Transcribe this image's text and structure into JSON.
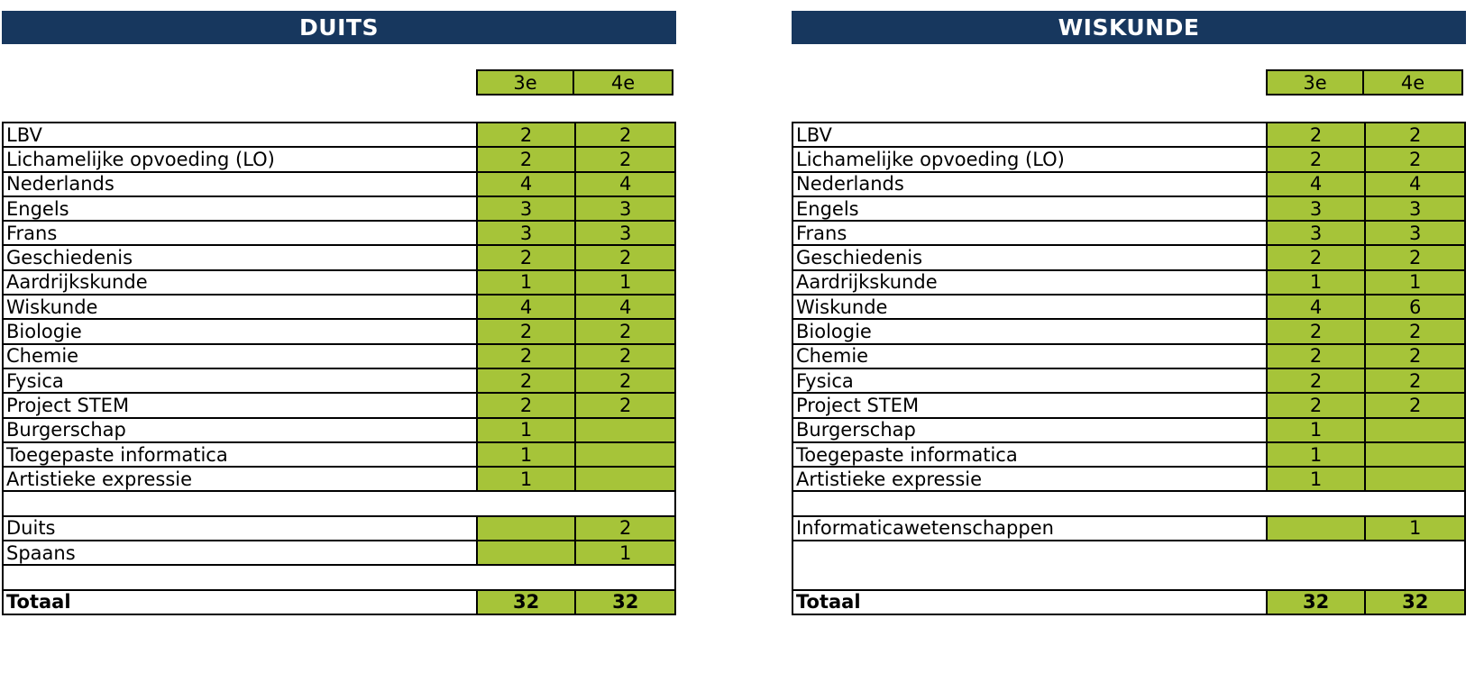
{
  "panels": [
    {
      "title": "DUITS",
      "col_headers": [
        "3e",
        "4e"
      ],
      "rows": [
        {
          "subject": "LBV",
          "c3": "2",
          "c4": "2"
        },
        {
          "subject": "Lichamelijke opvoeding (LO)",
          "c3": "2",
          "c4": "2"
        },
        {
          "subject": "Nederlands",
          "c3": "4",
          "c4": "4"
        },
        {
          "subject": "Engels",
          "c3": "3",
          "c4": "3"
        },
        {
          "subject": "Frans",
          "c3": "3",
          "c4": "3"
        },
        {
          "subject": "Geschiedenis",
          "c3": "2",
          "c4": "2"
        },
        {
          "subject": "Aardrijkskunde",
          "c3": "1",
          "c4": "1"
        },
        {
          "subject": "Wiskunde",
          "c3": "4",
          "c4": "4"
        },
        {
          "subject": "Biologie",
          "c3": "2",
          "c4": "2"
        },
        {
          "subject": "Chemie",
          "c3": "2",
          "c4": "2"
        },
        {
          "subject": "Fysica",
          "c3": "2",
          "c4": "2"
        },
        {
          "subject": "Project STEM",
          "c3": "2",
          "c4": "2"
        },
        {
          "subject": "Burgerschap",
          "c3": "1",
          "c4": ""
        },
        {
          "subject": "Toegepaste informatica",
          "c3": "1",
          "c4": ""
        },
        {
          "subject": "Artistieke expressie",
          "c3": "1",
          "c4": ""
        }
      ],
      "options": [
        {
          "subject": "Duits",
          "c3": "",
          "c4": "2"
        },
        {
          "subject": "Spaans",
          "c3": "",
          "c4": "1"
        }
      ],
      "total": {
        "label": "Totaal",
        "c3": "32",
        "c4": "32"
      }
    },
    {
      "title": "WISKUNDE",
      "col_headers": [
        "3e",
        "4e"
      ],
      "rows": [
        {
          "subject": "LBV",
          "c3": "2",
          "c4": "2"
        },
        {
          "subject": "Lichamelijke opvoeding (LO)",
          "c3": "2",
          "c4": "2"
        },
        {
          "subject": "Nederlands",
          "c3": "4",
          "c4": "4"
        },
        {
          "subject": "Engels",
          "c3": "3",
          "c4": "3"
        },
        {
          "subject": "Frans",
          "c3": "3",
          "c4": "3"
        },
        {
          "subject": "Geschiedenis",
          "c3": "2",
          "c4": "2"
        },
        {
          "subject": "Aardrijkskunde",
          "c3": "1",
          "c4": "1"
        },
        {
          "subject": "Wiskunde",
          "c3": "4",
          "c4": "6"
        },
        {
          "subject": "Biologie",
          "c3": "2",
          "c4": "2"
        },
        {
          "subject": "Chemie",
          "c3": "2",
          "c4": "2"
        },
        {
          "subject": "Fysica",
          "c3": "2",
          "c4": "2"
        },
        {
          "subject": "Project STEM",
          "c3": "2",
          "c4": "2"
        },
        {
          "subject": "Burgerschap",
          "c3": "1",
          "c4": ""
        },
        {
          "subject": "Toegepaste informatica",
          "c3": "1",
          "c4": ""
        },
        {
          "subject": "Artistieke expressie",
          "c3": "1",
          "c4": ""
        }
      ],
      "options": [
        {
          "subject": "Informaticawetenschappen",
          "c3": "",
          "c4": "1"
        }
      ],
      "total": {
        "label": "Totaal",
        "c3": "32",
        "c4": "32"
      }
    }
  ],
  "colors": {
    "header_bg": "#17375e",
    "cell_green": "#a6c439"
  }
}
